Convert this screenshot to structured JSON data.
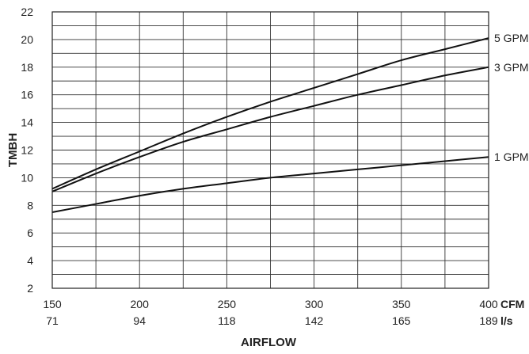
{
  "chart_data": {
    "type": "line",
    "title": "",
    "xlabel": "AIRFLOW",
    "ylabel": "TMBH",
    "xlim": [
      150,
      400
    ],
    "ylim": [
      2,
      22
    ],
    "grid": true,
    "x_ticks": [
      150,
      200,
      250,
      300,
      350,
      400
    ],
    "x_ticks_secondary": [
      71,
      94,
      118,
      142,
      165,
      189
    ],
    "x_unit_primary": "CFM",
    "x_unit_secondary": "l/s",
    "y_ticks": [
      2,
      4,
      6,
      8,
      10,
      12,
      14,
      16,
      18,
      20,
      22
    ],
    "series": [
      {
        "name": "5 GPM",
        "x": [
          150,
          175,
          200,
          225,
          250,
          275,
          300,
          325,
          350,
          375,
          400
        ],
        "values": [
          9.2,
          10.6,
          11.9,
          13.2,
          14.4,
          15.5,
          16.5,
          17.5,
          18.5,
          19.3,
          20.1
        ]
      },
      {
        "name": "3 GPM",
        "x": [
          150,
          175,
          200,
          225,
          250,
          275,
          300,
          325,
          350,
          375,
          400
        ],
        "values": [
          9.0,
          10.3,
          11.5,
          12.6,
          13.5,
          14.4,
          15.2,
          16.0,
          16.7,
          17.4,
          18.0
        ]
      },
      {
        "name": "1 GPM",
        "x": [
          150,
          175,
          200,
          225,
          250,
          275,
          300,
          325,
          350,
          375,
          400
        ],
        "values": [
          7.5,
          8.1,
          8.7,
          9.2,
          9.6,
          10.0,
          10.3,
          10.6,
          10.9,
          11.2,
          11.5
        ]
      }
    ]
  }
}
